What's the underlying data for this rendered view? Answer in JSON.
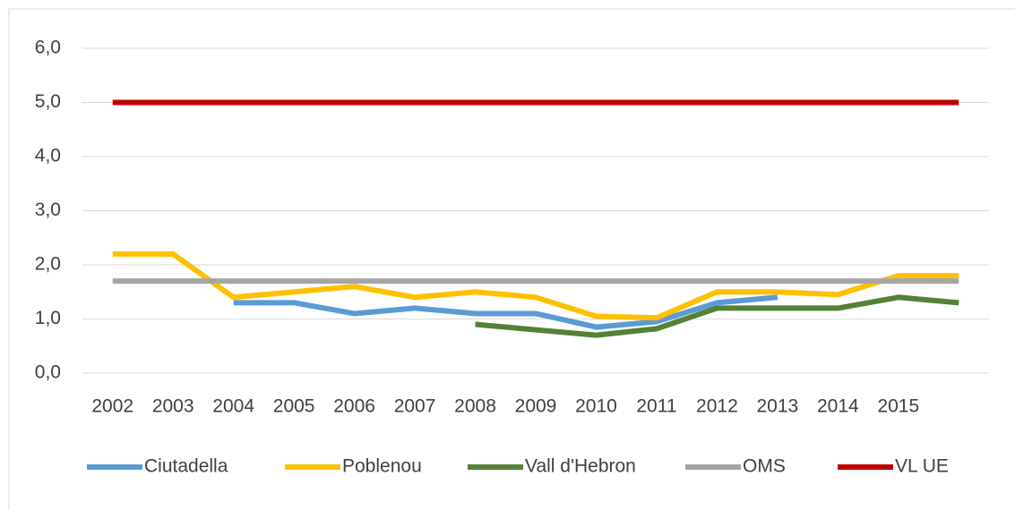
{
  "chart_data": {
    "type": "line",
    "categories": [
      "2002",
      "2003",
      "2004",
      "2005",
      "2006",
      "2007",
      "2008",
      "2009",
      "2010",
      "2011",
      "2012",
      "2013",
      "2014",
      "2015",
      null
    ],
    "series": [
      {
        "name": "Ciutadella",
        "color": "#5b9bd5",
        "values": [
          null,
          null,
          1.3,
          1.3,
          1.1,
          1.2,
          1.1,
          1.1,
          0.85,
          0.95,
          1.3,
          1.4,
          null,
          null,
          null
        ]
      },
      {
        "name": "Poblenou",
        "color": "#ffc000",
        "values": [
          2.2,
          2.2,
          1.4,
          1.5,
          1.6,
          1.4,
          1.5,
          1.4,
          1.05,
          1.02,
          1.5,
          1.5,
          1.45,
          1.8,
          1.8
        ]
      },
      {
        "name": "Vall d'Hebron",
        "color": "#548235",
        "values": [
          null,
          null,
          null,
          null,
          null,
          null,
          0.9,
          0.8,
          0.7,
          0.82,
          1.2,
          1.2,
          1.2,
          1.4,
          1.3
        ]
      },
      {
        "name": "OMS",
        "color": "#a5a5a5",
        "values": [
          1.7,
          1.7,
          1.7,
          1.7,
          1.7,
          1.7,
          1.7,
          1.7,
          1.7,
          1.7,
          1.7,
          1.7,
          1.7,
          1.7,
          1.7
        ]
      },
      {
        "name": "VL UE",
        "color": "#c00000",
        "values": [
          5.0,
          5.0,
          5.0,
          5.0,
          5.0,
          5.0,
          5.0,
          5.0,
          5.0,
          5.0,
          5.0,
          5.0,
          5.0,
          5.0,
          5.0
        ]
      }
    ],
    "ylim": [
      0,
      6
    ],
    "yticks": [
      {
        "value": 0,
        "label": "0,0"
      },
      {
        "value": 1,
        "label": "1,0"
      },
      {
        "value": 2,
        "label": "2,0"
      },
      {
        "value": 3,
        "label": "3,0"
      },
      {
        "value": 4,
        "label": "4,0"
      },
      {
        "value": 5,
        "label": "5,0"
      },
      {
        "value": 6,
        "label": "6,0"
      }
    ],
    "grid": true,
    "legend": "bottom"
  }
}
